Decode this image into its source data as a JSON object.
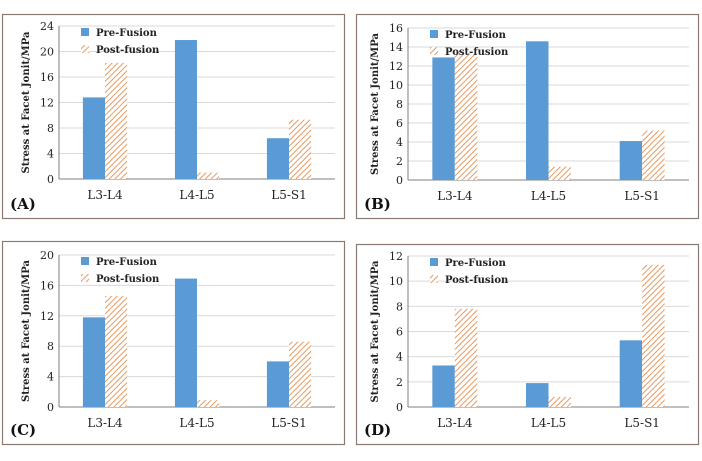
{
  "colors": {
    "pre": "#5b9bd5",
    "post_stroke": "#e59a62",
    "frame": "#8a7a70",
    "grid": "#d9d9d9",
    "axis": "#7f7f7f"
  },
  "chart_data": [
    {
      "type": "bar",
      "panel_label": "(A)",
      "ylabel": "Stress at Facet Jonit/MPa",
      "categories": [
        "L3-L4",
        "L4-L5",
        "L5-S1"
      ],
      "ylim": [
        0,
        24
      ],
      "yticks": [
        0,
        4,
        8,
        12,
        16,
        20,
        24
      ],
      "series": [
        {
          "name": "Pre-Fusion",
          "values": [
            12.8,
            21.8,
            6.4
          ]
        },
        {
          "name": "Post-fusion",
          "values": [
            18.2,
            1.0,
            9.3
          ]
        }
      ]
    },
    {
      "type": "bar",
      "panel_label": "(B)",
      "ylabel": "Stress at Facet Jonit/MPa",
      "categories": [
        "L3-L4",
        "L4-L5",
        "L5-S1"
      ],
      "ylim": [
        0,
        16
      ],
      "yticks": [
        0,
        2,
        4,
        6,
        8,
        10,
        12,
        14,
        16
      ],
      "series": [
        {
          "name": "Pre-Fusion",
          "values": [
            12.9,
            14.6,
            4.1
          ]
        },
        {
          "name": "Post-fusion",
          "values": [
            13.3,
            1.4,
            5.2
          ]
        }
      ]
    },
    {
      "type": "bar",
      "panel_label": "(C)",
      "ylabel": "Stress at Facet Jonit/MPa",
      "categories": [
        "L3-L4",
        "L4-L5",
        "L5-S1"
      ],
      "ylim": [
        0,
        20
      ],
      "yticks": [
        0,
        4,
        8,
        12,
        16,
        20
      ],
      "series": [
        {
          "name": "Pre-Fusion",
          "values": [
            11.8,
            16.9,
            6.0
          ]
        },
        {
          "name": "Post-fusion",
          "values": [
            14.6,
            0.9,
            8.6
          ]
        }
      ]
    },
    {
      "type": "bar",
      "panel_label": "(D)",
      "ylabel": "Stress at Facet Jonit/MPa",
      "categories": [
        "L3-L4",
        "L4-L5",
        "L5-S1"
      ],
      "ylim": [
        0,
        12
      ],
      "yticks": [
        0,
        2,
        4,
        6,
        8,
        10,
        12
      ],
      "series": [
        {
          "name": "Pre-Fusion",
          "values": [
            3.3,
            1.9,
            5.3
          ]
        },
        {
          "name": "Post-fusion",
          "values": [
            7.8,
            0.8,
            11.3
          ]
        }
      ]
    }
  ]
}
